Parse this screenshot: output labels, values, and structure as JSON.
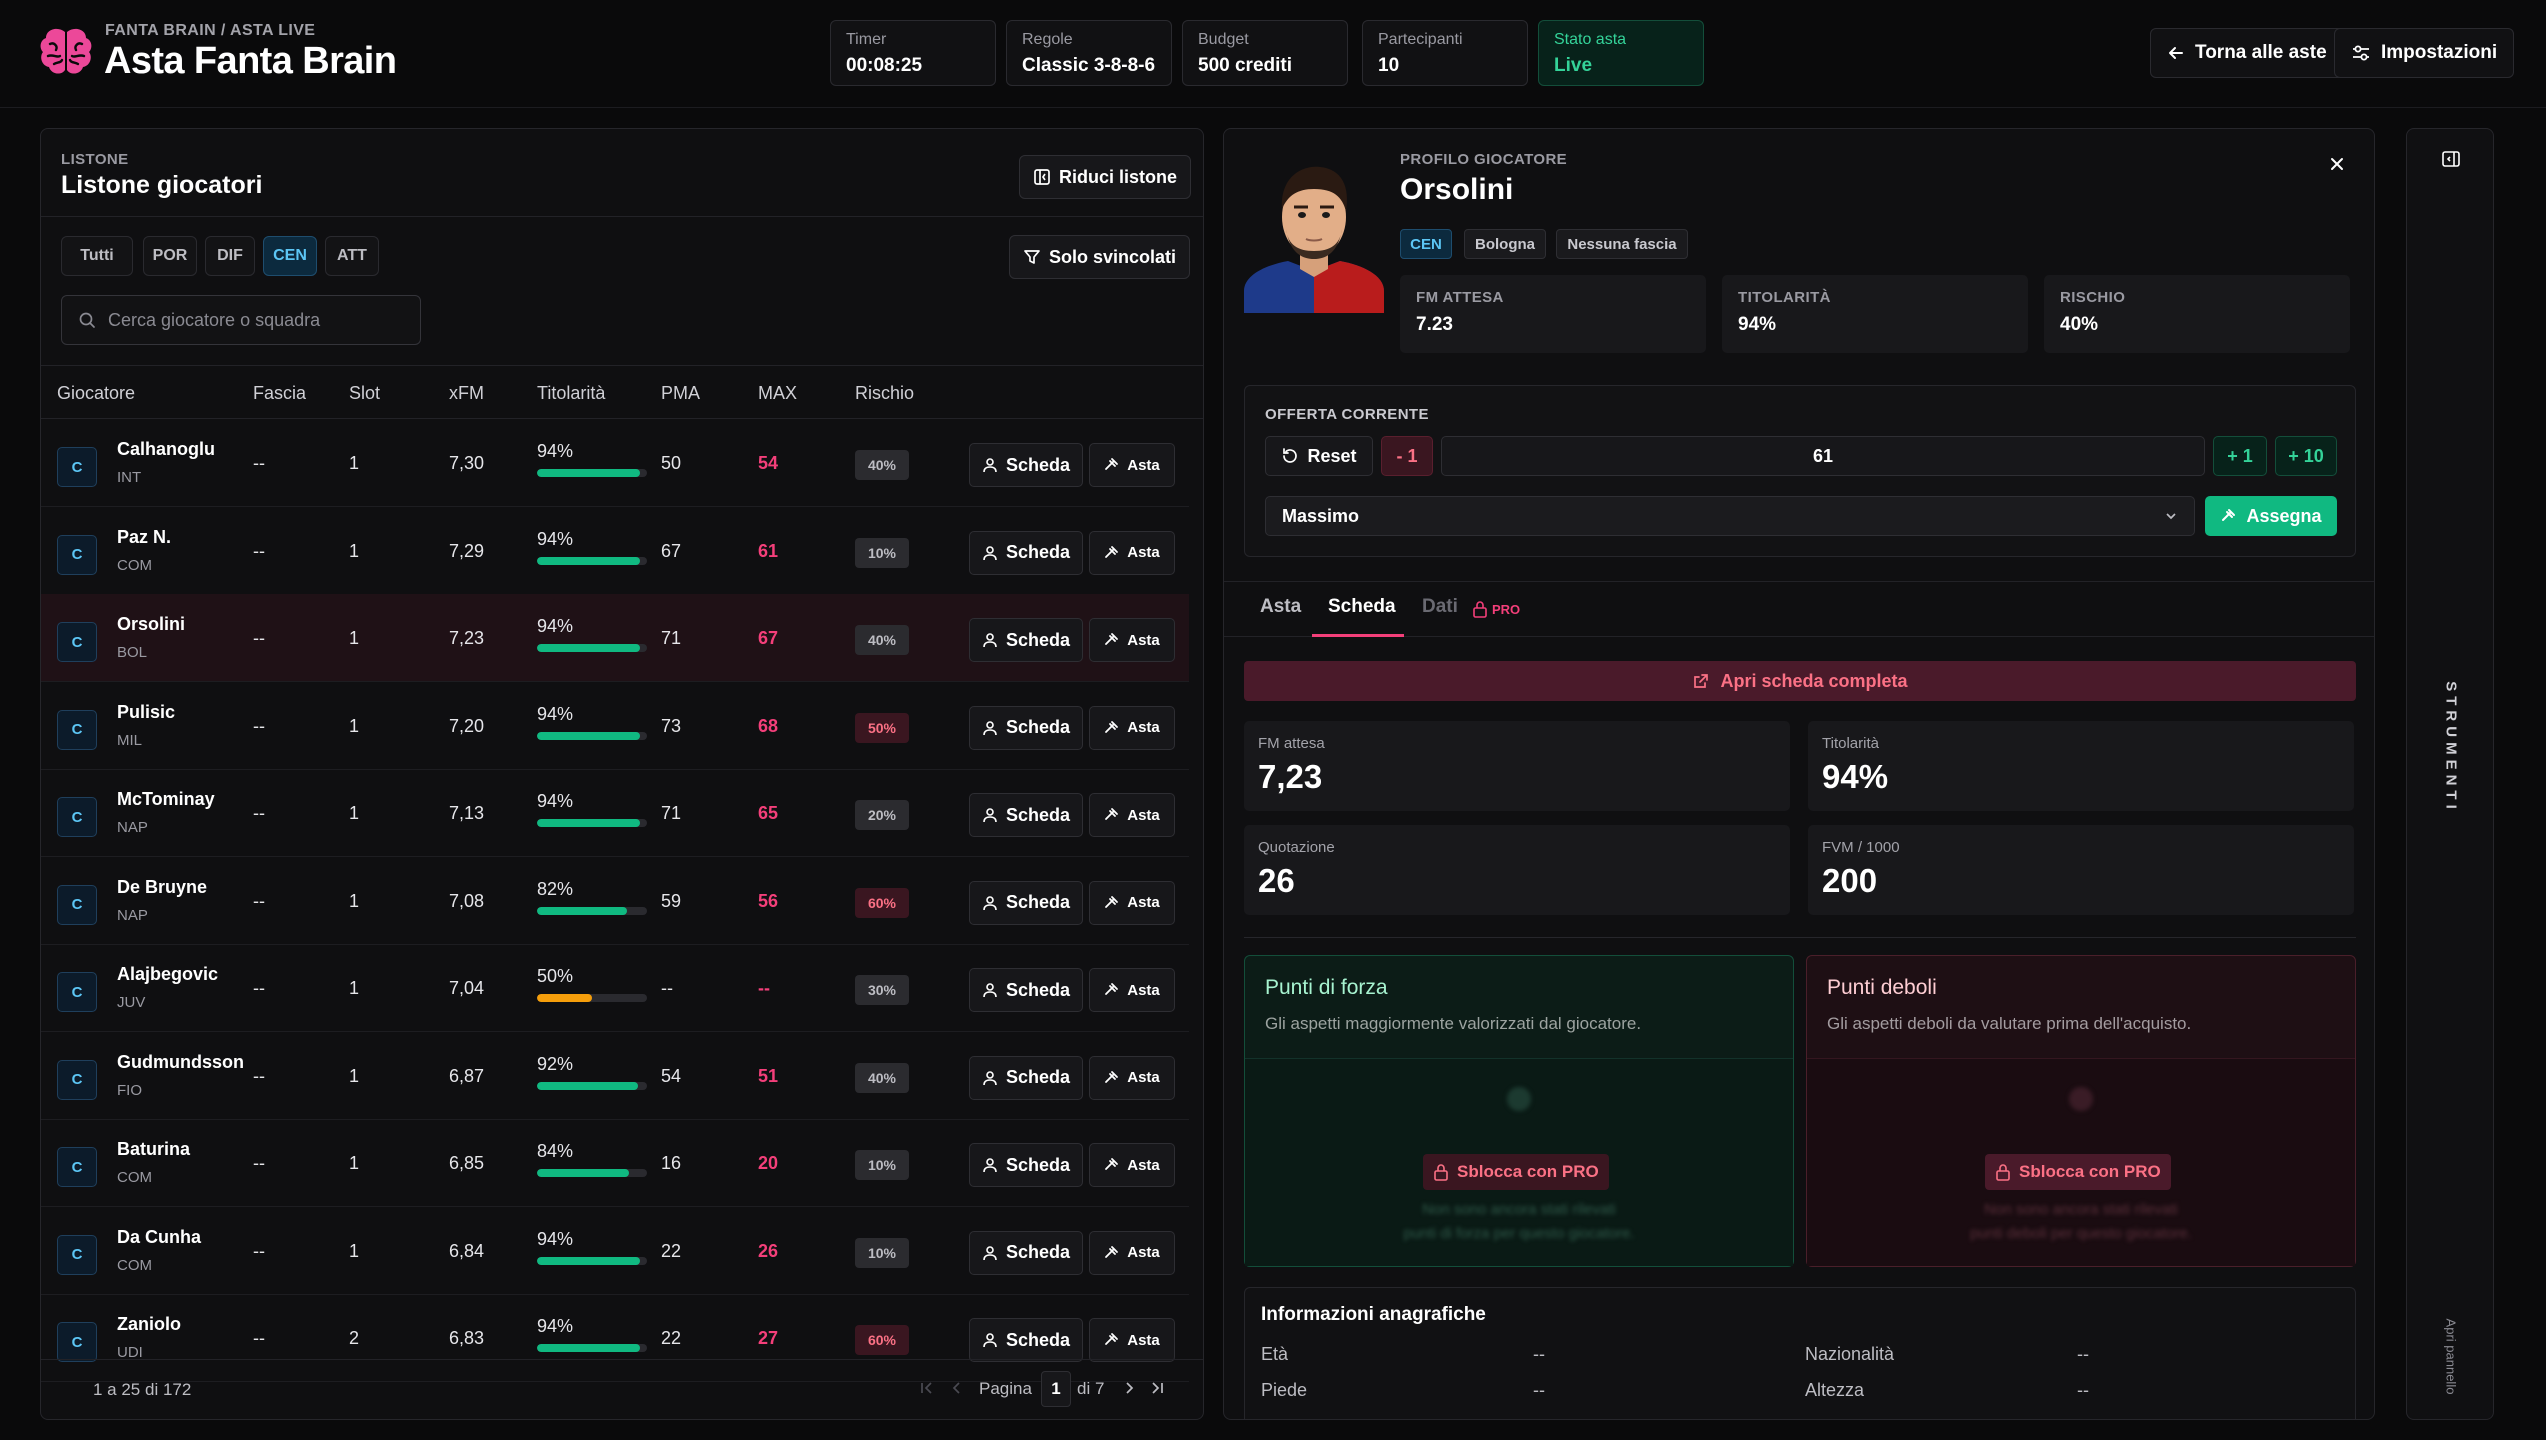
{
  "header": {
    "crumb": "FANTA BRAIN / ASTA LIVE",
    "title": "Asta Fanta Brain",
    "logo_icon": "brain-icon",
    "stats": [
      {
        "label": "Timer",
        "value": "00:08:25"
      },
      {
        "label": "Regole",
        "value": "Classic 3-8-8-6"
      },
      {
        "label": "Budget",
        "value": "500 crediti"
      },
      {
        "label": "Partecipanti",
        "value": "10"
      },
      {
        "label": "Stato asta",
        "value": "Live"
      }
    ],
    "back_label": "Torna alle aste",
    "settings_label": "Impostazioni"
  },
  "listone": {
    "eyebrow": "LISTONE",
    "title": "Listone giocatori",
    "collapse_label": "Riduci listone",
    "filters": [
      "Tutti",
      "POR",
      "DIF",
      "CEN",
      "ATT"
    ],
    "active_filter": "CEN",
    "free_only_label": "Solo svincolati",
    "search_placeholder": "Cerca giocatore o squadra",
    "columns": [
      "Giocatore",
      "Fascia",
      "Slot",
      "xFM",
      "Titolarità",
      "PMA",
      "MAX",
      "Rischio"
    ],
    "row_button_profile": "Scheda",
    "row_button_auction": "Asta",
    "rows": [
      {
        "role": "C",
        "name": "Calhanoglu",
        "team": "INT",
        "fascia": "--",
        "slot": "1",
        "xfm": "7,30",
        "tit": "94%",
        "tit_pct": 94,
        "pma": "50",
        "max": "54",
        "risk": "40%",
        "risk_high": false
      },
      {
        "role": "C",
        "name": "Paz N.",
        "team": "COM",
        "fascia": "--",
        "slot": "1",
        "xfm": "7,29",
        "tit": "94%",
        "tit_pct": 94,
        "pma": "67",
        "max": "61",
        "risk": "10%",
        "risk_high": false
      },
      {
        "role": "C",
        "name": "Orsolini",
        "team": "BOL",
        "fascia": "--",
        "slot": "1",
        "xfm": "7,23",
        "tit": "94%",
        "tit_pct": 94,
        "pma": "71",
        "max": "67",
        "risk": "40%",
        "risk_high": false,
        "selected": true
      },
      {
        "role": "C",
        "name": "Pulisic",
        "team": "MIL",
        "fascia": "--",
        "slot": "1",
        "xfm": "7,20",
        "tit": "94%",
        "tit_pct": 94,
        "pma": "73",
        "max": "68",
        "risk": "50%",
        "risk_high": true
      },
      {
        "role": "C",
        "name": "McTominay",
        "team": "NAP",
        "fascia": "--",
        "slot": "1",
        "xfm": "7,13",
        "tit": "94%",
        "tit_pct": 94,
        "pma": "71",
        "max": "65",
        "risk": "20%",
        "risk_high": false
      },
      {
        "role": "C",
        "name": "De Bruyne",
        "team": "NAP",
        "fascia": "--",
        "slot": "1",
        "xfm": "7,08",
        "tit": "82%",
        "tit_pct": 82,
        "pma": "59",
        "max": "56",
        "risk": "60%",
        "risk_high": true
      },
      {
        "role": "C",
        "name": "Alajbegovic",
        "team": "JUV",
        "fascia": "--",
        "slot": "1",
        "xfm": "7,04",
        "tit": "50%",
        "tit_pct": 50,
        "pma": "--",
        "max": "--",
        "risk": "30%",
        "risk_high": false,
        "bar_color": "#f59e0b"
      },
      {
        "role": "C",
        "name": "Gudmundsson",
        "team": "FIO",
        "fascia": "--",
        "slot": "1",
        "xfm": "6,87",
        "tit": "92%",
        "tit_pct": 92,
        "pma": "54",
        "max": "51",
        "risk": "40%",
        "risk_high": false
      },
      {
        "role": "C",
        "name": "Baturina",
        "team": "COM",
        "fascia": "--",
        "slot": "1",
        "xfm": "6,85",
        "tit": "84%",
        "tit_pct": 84,
        "pma": "16",
        "max": "20",
        "risk": "10%",
        "risk_high": false
      },
      {
        "role": "C",
        "name": "Da Cunha",
        "team": "COM",
        "fascia": "--",
        "slot": "1",
        "xfm": "6,84",
        "tit": "94%",
        "tit_pct": 94,
        "pma": "22",
        "max": "26",
        "risk": "10%",
        "risk_high": false
      },
      {
        "role": "C",
        "name": "Zaniolo",
        "team": "UDI",
        "fascia": "--",
        "slot": "2",
        "xfm": "6,83",
        "tit": "94%",
        "tit_pct": 94,
        "pma": "22",
        "max": "27",
        "risk": "60%",
        "risk_high": true
      }
    ],
    "pager": {
      "summary": "1 a 25 di 172",
      "page_label": "Pagina",
      "page": "1",
      "of": "di 7"
    }
  },
  "profile": {
    "eyebrow": "PROFILO GIOCATORE",
    "name": "Orsolini",
    "tags": [
      "CEN",
      "Bologna",
      "Nessuna fascia"
    ],
    "metrics": [
      {
        "label": "FM ATTESA",
        "value": "7.23"
      },
      {
        "label": "TITOLARITÀ",
        "value": "94%"
      },
      {
        "label": "RISCHIO",
        "value": "40%"
      }
    ],
    "offer": {
      "label": "OFFERTA CORRENTE",
      "reset": "Reset",
      "minus": "- 1",
      "value": "61",
      "plus1": "+ 1",
      "plus10": "+ 10",
      "participant": "Massimo",
      "assign": "Assegna"
    },
    "tabs": [
      "Asta",
      "Scheda",
      "Dati"
    ],
    "active_tab": "Scheda",
    "pro_label": "PRO",
    "open_full": "Apri scheda completa",
    "kpis": [
      {
        "label": "FM attesa",
        "value": "7,23"
      },
      {
        "label": "Titolarità",
        "value": "94%"
      },
      {
        "label": "Quotazione",
        "value": "26"
      },
      {
        "label": "FVM / 1000",
        "value": "200"
      }
    ],
    "strengths": {
      "title": "Punti di forza",
      "subtitle": "Gli aspetti maggiormente valorizzati dal giocatore.",
      "unlock": "Sblocca con PRO",
      "blur1": "Non sono ancora stati rilevati",
      "blur2": "punti di forza per questo giocatore."
    },
    "weaknesses": {
      "title": "Punti deboli",
      "subtitle": "Gli aspetti deboli da valutare prima dell'acquisto.",
      "unlock": "Sblocca con PRO",
      "blur1": "Non sono ancora stati rilevati",
      "blur2": "punti deboli per questo giocatore."
    },
    "info": {
      "title": "Informazioni anagrafiche",
      "fields": [
        {
          "label": "Età",
          "value": "--"
        },
        {
          "label": "Nazionalità",
          "value": "--"
        },
        {
          "label": "Piede",
          "value": "--"
        },
        {
          "label": "Altezza",
          "value": "--"
        }
      ]
    }
  },
  "sidebar": {
    "title": "STRUMENTI",
    "open_label": "Apri pannello"
  },
  "colors": {
    "accent_green": "#10b981",
    "accent_pink": "#f43f7a",
    "accent_blue": "#5cc6f5",
    "brain": "#ec4899"
  }
}
